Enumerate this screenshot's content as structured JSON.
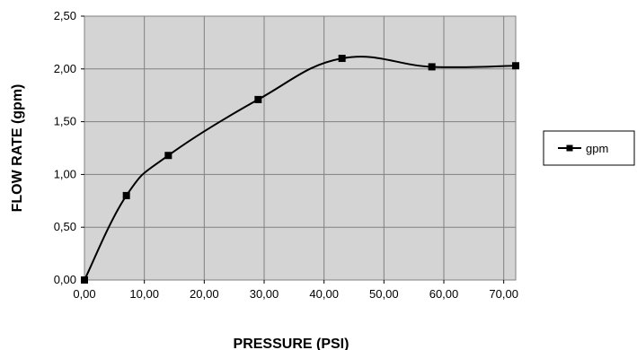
{
  "chart_data": {
    "type": "line",
    "xlabel": "PRESSURE (PSI)",
    "ylabel": "FLOW RATE (gpm)",
    "xlim": [
      0,
      72
    ],
    "ylim": [
      0,
      2.5
    ],
    "x_ticks": [
      "0,00",
      "10,00",
      "20,00",
      "30,00",
      "40,00",
      "50,00",
      "60,00",
      "70,00"
    ],
    "y_ticks": [
      "0,00",
      "0,50",
      "1,00",
      "1,50",
      "2,00",
      "2,50"
    ],
    "grid": true,
    "legend_position": "right",
    "series": [
      {
        "name": "gpm",
        "color": "#000000",
        "marker": "square",
        "smooth": true,
        "x": [
          0,
          7,
          14,
          29,
          43,
          58,
          72
        ],
        "y": [
          0,
          0.8,
          1.18,
          1.71,
          2.1,
          2.02,
          2.03
        ]
      }
    ]
  }
}
